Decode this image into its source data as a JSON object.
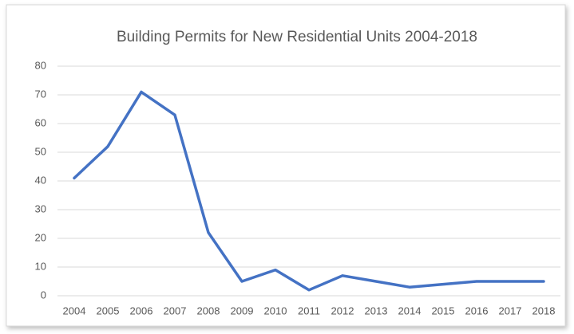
{
  "chart_data": {
    "type": "line",
    "title": "Building Permits for New Residential Units 2004-2018",
    "categories": [
      "2004",
      "2005",
      "2006",
      "2007",
      "2008",
      "2009",
      "2010",
      "2011",
      "2012",
      "2013",
      "2014",
      "2015",
      "2016",
      "2017",
      "2018"
    ],
    "values": [
      41,
      52,
      71,
      63,
      22,
      5,
      9,
      2,
      7,
      5,
      3,
      4,
      5,
      5,
      5
    ],
    "color": "#4472c4",
    "ylim": [
      0,
      80
    ],
    "yticks": [
      0,
      10,
      20,
      30,
      40,
      50,
      60,
      70,
      80
    ],
    "grid": true
  }
}
